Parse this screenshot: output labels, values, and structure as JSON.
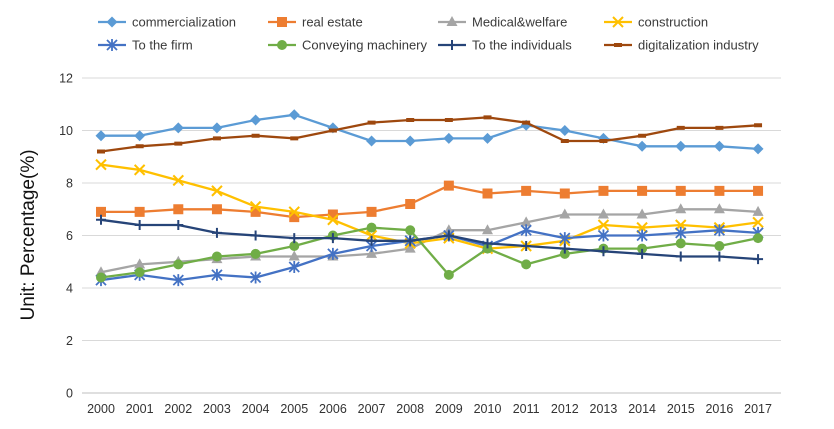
{
  "chart_data": {
    "type": "line",
    "title": "",
    "xlabel": "",
    "ylabel": "Unit: Percentage(%)",
    "ylim": [
      0,
      12
    ],
    "yticks": [
      0,
      2,
      4,
      6,
      8,
      10,
      12
    ],
    "grid": "horizontal",
    "legend_position": "top",
    "categories": [
      "2000",
      "2001",
      "2002",
      "2003",
      "2004",
      "2005",
      "2006",
      "2007",
      "2008",
      "2009",
      "2010",
      "2011",
      "2012",
      "2013",
      "2014",
      "2015",
      "2016",
      "2017"
    ],
    "series": [
      {
        "name": "commercialization",
        "color": "#5b9bd5",
        "marker": "diamond",
        "values": [
          9.8,
          9.8,
          10.1,
          10.1,
          10.4,
          10.6,
          10.1,
          9.6,
          9.6,
          9.7,
          9.7,
          10.2,
          10.0,
          9.7,
          9.4,
          9.4,
          9.4,
          9.3
        ]
      },
      {
        "name": "real estate",
        "color": "#ed7d31",
        "marker": "square",
        "values": [
          6.9,
          6.9,
          7.0,
          7.0,
          6.9,
          6.7,
          6.8,
          6.9,
          7.2,
          7.9,
          7.6,
          7.7,
          7.6,
          7.7,
          7.7,
          7.7,
          7.7,
          7.7
        ]
      },
      {
        "name": "Medical&welfare",
        "color": "#a5a5a5",
        "marker": "triangle",
        "values": [
          4.6,
          4.9,
          5.0,
          5.1,
          5.2,
          5.2,
          5.2,
          5.3,
          5.5,
          6.2,
          6.2,
          6.5,
          6.8,
          6.8,
          6.8,
          7.0,
          7.0,
          6.9
        ]
      },
      {
        "name": "construction",
        "color": "#ffc000",
        "marker": "x",
        "values": [
          8.7,
          8.5,
          8.1,
          7.7,
          7.1,
          6.9,
          6.6,
          6.0,
          5.7,
          5.9,
          5.5,
          5.6,
          5.8,
          6.4,
          6.3,
          6.4,
          6.3,
          6.5
        ]
      },
      {
        "name": "To the firm",
        "color": "#4472c4",
        "marker": "star",
        "values": [
          4.3,
          4.5,
          4.3,
          4.5,
          4.4,
          4.8,
          5.3,
          5.6,
          5.8,
          6.0,
          5.6,
          6.2,
          5.9,
          6.0,
          6.0,
          6.1,
          6.2,
          6.1
        ]
      },
      {
        "name": "Conveying machinery",
        "color": "#70ad47",
        "marker": "circle",
        "values": [
          4.4,
          4.6,
          4.9,
          5.2,
          5.3,
          5.6,
          6.0,
          6.3,
          6.2,
          4.5,
          5.5,
          4.9,
          5.3,
          5.5,
          5.5,
          5.7,
          5.6,
          5.9
        ]
      },
      {
        "name": "To the individuals",
        "color": "#264478",
        "marker": "plus",
        "values": [
          6.6,
          6.4,
          6.4,
          6.1,
          6.0,
          5.9,
          5.9,
          5.8,
          5.8,
          6.0,
          5.7,
          5.6,
          5.5,
          5.4,
          5.3,
          5.2,
          5.2,
          5.1
        ]
      },
      {
        "name": "digitalization industry",
        "color": "#9e480e",
        "marker": "dash",
        "values": [
          9.2,
          9.4,
          9.5,
          9.7,
          9.8,
          9.7,
          10.0,
          10.3,
          10.4,
          10.4,
          10.5,
          10.3,
          9.6,
          9.6,
          9.8,
          10.1,
          10.1,
          10.2
        ]
      }
    ]
  }
}
